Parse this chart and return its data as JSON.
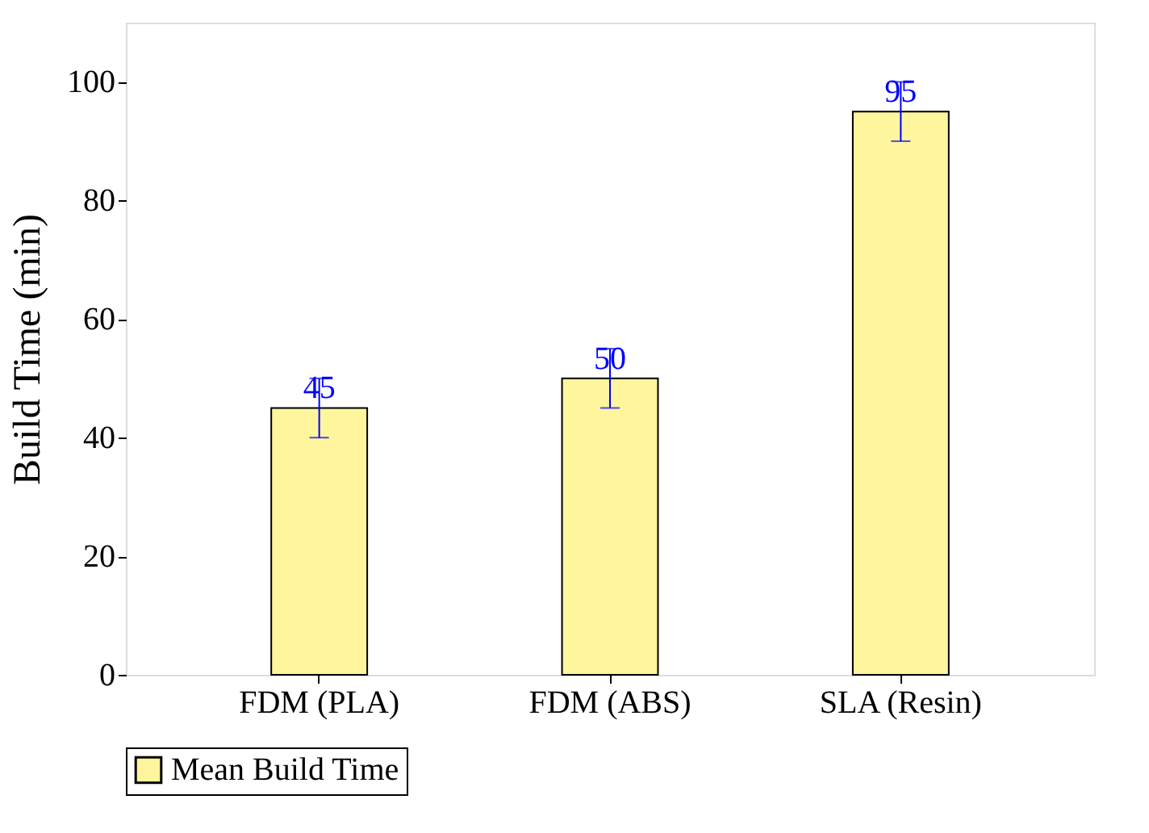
{
  "chart_data": {
    "type": "bar",
    "ylabel": "Build Time (min)",
    "categories": [
      "FDM (PLA)",
      "FDM (ABS)",
      "SLA (Resin)"
    ],
    "series": [
      {
        "name": "Mean Build Time",
        "color": "#fff59d",
        "values": [
          45,
          50,
          95
        ],
        "errors": [
          5,
          5,
          5
        ]
      }
    ],
    "ylim": [
      0,
      110
    ],
    "yticks": [
      0,
      20,
      40,
      60,
      80,
      100
    ],
    "grid": false,
    "legend": "bottom",
    "data_labels": true
  }
}
